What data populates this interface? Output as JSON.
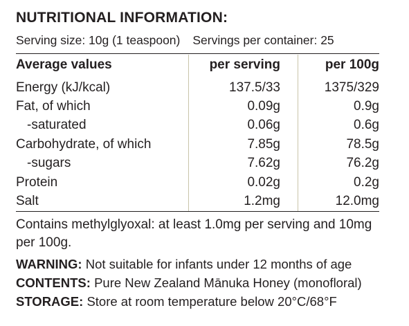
{
  "label": {
    "title": "NUTRITIONAL INFORMATION:",
    "serving_size": "Serving size: 10g (1 teaspoon)",
    "servings_per_container": "Servings per container: 25",
    "table": {
      "headers": [
        "Average values",
        "per serving",
        "per 100g"
      ],
      "rows": [
        {
          "name": "Energy (kJ/kcal)",
          "per_serving": "137.5/33",
          "per_100g": "1375/329"
        },
        {
          "name": "Fat, of which",
          "per_serving": "0.09g",
          "per_100g": "0.9g"
        },
        {
          "name": "-saturated",
          "per_serving": "0.06g",
          "per_100g": "0.6g"
        },
        {
          "name": "Carbohydrate, of which",
          "per_serving": "7.85g",
          "per_100g": "78.5g"
        },
        {
          "name": "-sugars",
          "per_serving": "7.62g",
          "per_100g": "76.2g"
        },
        {
          "name": "Protein",
          "per_serving": "0.02g",
          "per_100g": "0.2g"
        },
        {
          "name": "Salt",
          "per_serving": "1.2mg",
          "per_100g": "12.0mg"
        }
      ]
    },
    "methylglyoxal_note": "Contains methylglyoxal: at least 1.0mg per serving and 10mg per 100g.",
    "warning": {
      "label": "WARNING:",
      "text": "Not suitable for infants under 12 months of age"
    },
    "contents": {
      "label": "CONTENTS:",
      "text": "Pure New Zealand Mānuka Honey (monofloral)"
    },
    "storage": {
      "label": "STORAGE:",
      "text": "Store at room temperature below 20°C/68°F"
    }
  }
}
